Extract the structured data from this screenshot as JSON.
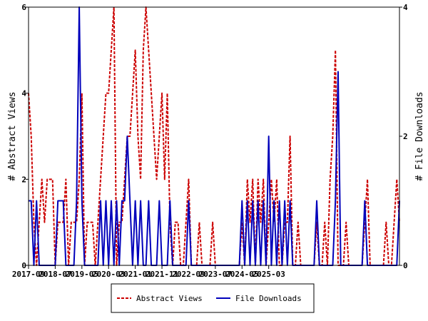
{
  "chart_data": {
    "type": "line",
    "title": "",
    "x_tick_labels": [
      "2017-09",
      "2018-07",
      "2019-05",
      "2020-03",
      "2021-01",
      "2021-11",
      "2022-09",
      "2023-07",
      "2024-05",
      "2025-03"
    ],
    "y_left": {
      "label": "# Abstract Views",
      "range": [
        0,
        6
      ],
      "ticks": [
        0,
        2,
        4,
        6
      ]
    },
    "y_right": {
      "label": "# File Downloads",
      "range": [
        0,
        4
      ],
      "ticks": [
        0,
        2,
        4
      ]
    },
    "legend": {
      "position": "bottom-center"
    },
    "grid": false,
    "series": [
      {
        "name": "Abstract Views",
        "axis": "left",
        "color": "#cc0000",
        "style": "dashed",
        "values": [
          4,
          3,
          1,
          0,
          1,
          2,
          1,
          2,
          2,
          2,
          0,
          1,
          1,
          1,
          2,
          0,
          1,
          1,
          1,
          2,
          4,
          0,
          1,
          1,
          1,
          0,
          1,
          2,
          3,
          4,
          4,
          5,
          6,
          0,
          1,
          1,
          2,
          3,
          3,
          4,
          5,
          3,
          2,
          5,
          6,
          5,
          4,
          3,
          2,
          3,
          4,
          2,
          4,
          1,
          0,
          1,
          1,
          0,
          0,
          1,
          2,
          0,
          0,
          0,
          1,
          0,
          0,
          0,
          0,
          1,
          0,
          0,
          0,
          0,
          0,
          0,
          0,
          0,
          0,
          0,
          1,
          0,
          2,
          1,
          2,
          0,
          2,
          1,
          2,
          0,
          1,
          2,
          1,
          2,
          0,
          0,
          1,
          1,
          3,
          0,
          0,
          1,
          0,
          0,
          0,
          0,
          0,
          0,
          1,
          0,
          0,
          1,
          0,
          2,
          3,
          5,
          0,
          0,
          0,
          1,
          0,
          0,
          0,
          0,
          0,
          0,
          1,
          2,
          0,
          0,
          0,
          0,
          0,
          0,
          1,
          0,
          0,
          1,
          2,
          1
        ]
      },
      {
        "name": "File Downloads",
        "axis": "right",
        "color": "#0000bb",
        "style": "solid",
        "values": [
          1,
          1,
          0,
          1,
          0,
          0,
          0,
          0,
          0,
          0,
          0,
          1,
          1,
          1,
          0,
          0,
          0,
          0,
          1,
          4,
          1,
          0,
          0,
          0,
          0,
          0,
          0,
          1,
          0,
          1,
          0,
          1,
          0,
          1,
          0,
          1,
          1,
          2,
          1,
          0,
          1,
          0,
          1,
          0,
          0,
          1,
          0,
          0,
          0,
          1,
          0,
          0,
          0,
          1,
          0,
          0,
          0,
          0,
          0,
          0,
          1,
          0,
          0,
          0,
          0,
          0,
          0,
          0,
          0,
          0,
          0,
          0,
          0,
          0,
          0,
          0,
          0,
          0,
          0,
          0,
          1,
          0,
          1,
          0,
          1,
          0,
          1,
          0,
          1,
          0,
          2,
          0,
          1,
          0,
          1,
          0,
          1,
          0,
          1,
          0,
          0,
          0,
          0,
          0,
          0,
          0,
          0,
          0,
          1,
          0,
          0,
          0,
          0,
          0,
          0,
          1,
          3,
          0,
          0,
          0,
          0,
          0,
          0,
          0,
          0,
          0,
          1,
          0,
          0,
          0,
          0,
          0,
          0,
          0,
          0,
          0,
          0,
          0,
          0,
          1
        ]
      }
    ]
  }
}
